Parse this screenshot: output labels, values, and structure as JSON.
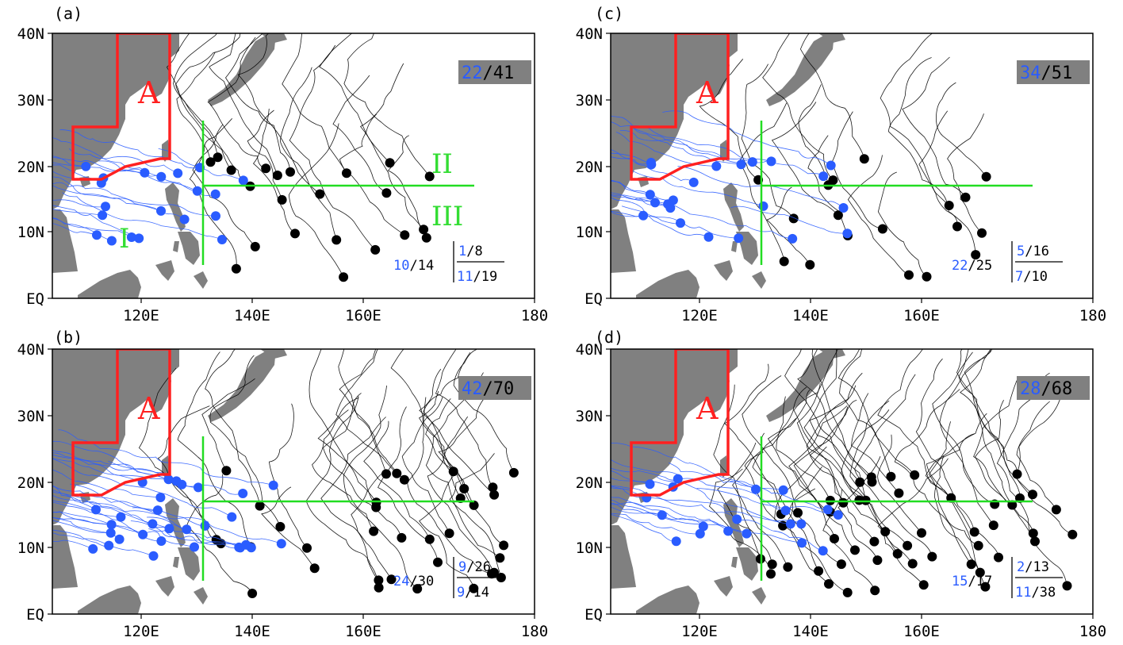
{
  "panels": [
    {
      "label": "(a)",
      "region_box": "A",
      "count_badge": {
        "blue": "22",
        "sep": "/",
        "black": "41"
      },
      "region_numerals": [
        "I",
        "II",
        "III"
      ],
      "ratios": {
        "left": {
          "blue": "10",
          "black": "/14"
        },
        "top": {
          "blue": "1",
          "black": "/8"
        },
        "bottom": {
          "blue": "11",
          "black": "/19"
        }
      }
    },
    {
      "label": "(c)",
      "region_box": "A",
      "count_badge": {
        "blue": "34",
        "sep": "/",
        "black": "51"
      },
      "region_numerals": [],
      "ratios": {
        "left": {
          "blue": "22",
          "black": "/25"
        },
        "top": {
          "blue": "5",
          "black": "/16"
        },
        "bottom": {
          "blue": "7",
          "black": "/10"
        }
      }
    },
    {
      "label": "(b)",
      "region_box": "A",
      "count_badge": {
        "blue": "42",
        "sep": "/",
        "black": "70"
      },
      "region_numerals": [],
      "ratios": {
        "left": {
          "blue": "24",
          "black": "/30"
        },
        "top": {
          "blue": "9",
          "black": "/26"
        },
        "bottom": {
          "blue": "9",
          "black": "/14"
        }
      }
    },
    {
      "label": "(d)",
      "region_box": "A",
      "count_badge": {
        "blue": "28",
        "sep": "/",
        "black": "68"
      },
      "region_numerals": [],
      "ratios": {
        "left": {
          "blue": "15",
          "black": "/17"
        },
        "top": {
          "blue": "2",
          "black": "/13"
        },
        "bottom": {
          "blue": "11",
          "black": "/38"
        }
      }
    }
  ],
  "axes": {
    "lat_ticks": [
      "40N",
      "30N",
      "20N",
      "10N",
      "EQ"
    ],
    "lon_ticks": [
      "120E",
      "140E",
      "160E",
      "180"
    ]
  },
  "colors": {
    "land": "#808080",
    "ocean": "#ffffff",
    "region_box": "#ff2020",
    "divider": "#22dd22",
    "blue_track": "#2a5cff",
    "black_track": "#000000",
    "badge_bg": "#808080"
  }
}
